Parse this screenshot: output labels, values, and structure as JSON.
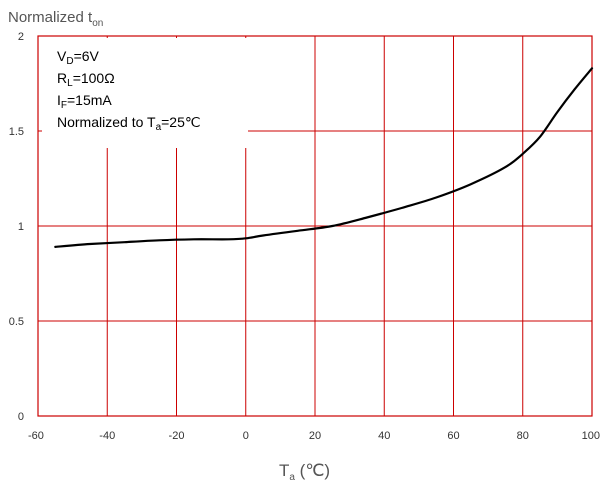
{
  "chart_data": {
    "type": "line",
    "title": "",
    "ylabel": {
      "main": "Normalized t",
      "sub": "on"
    },
    "xlabel": {
      "main": "T",
      "sub": "a",
      "unit": " (℃)"
    },
    "xlim": [
      -60,
      100
    ],
    "ylim": [
      0,
      2
    ],
    "x_ticks": [
      "-60",
      "-40",
      "-20",
      "0",
      "20",
      "40",
      "60",
      "80",
      "100"
    ],
    "y_ticks": [
      "0",
      "0.5",
      "1",
      "1.5",
      "2"
    ],
    "grid": true,
    "grid_color": "#cc0000",
    "line_color": "#000000",
    "annotations": [
      {
        "main": "V",
        "sub": "D",
        "rest": "=6V"
      },
      {
        "main": "R",
        "sub": "L",
        "rest": "=100Ω"
      },
      {
        "main": "I",
        "sub": "F",
        "rest": "=15mA"
      },
      {
        "main": "Normalized to T",
        "sub": "a",
        "rest": "=25℃"
      }
    ],
    "series": [
      {
        "x": [
          -55,
          -45,
          -35,
          -25,
          -15,
          -5,
          0,
          5,
          15,
          25,
          35,
          45,
          55,
          65,
          75,
          80,
          85,
          90,
          95,
          100
        ],
        "y": [
          0.89,
          0.905,
          0.915,
          0.925,
          0.93,
          0.93,
          0.935,
          0.95,
          0.975,
          1.0,
          1.045,
          1.095,
          1.15,
          1.22,
          1.31,
          1.38,
          1.47,
          1.6,
          1.72,
          1.83
        ]
      }
    ]
  }
}
